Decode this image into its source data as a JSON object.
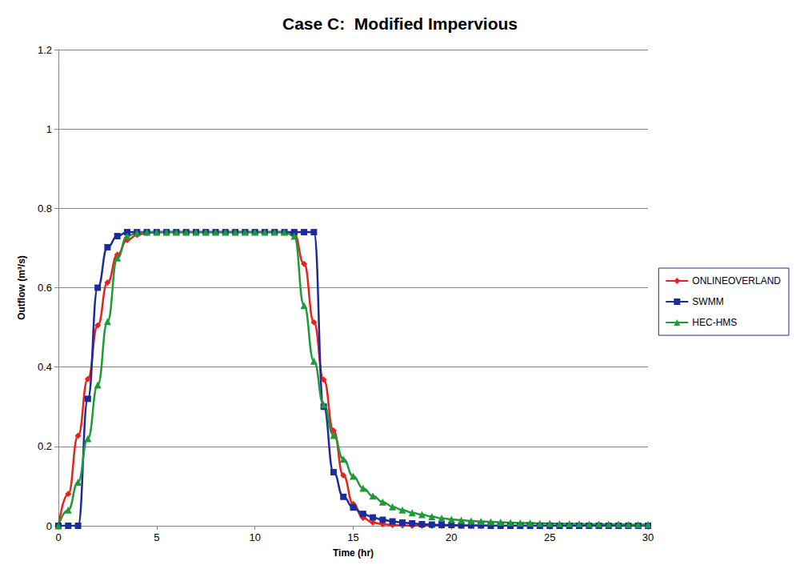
{
  "chart_data": {
    "type": "line",
    "title": "Case C:  Modified Impervious",
    "x_label": "Time (hr)",
    "y_label": "Outflow (m³/s)",
    "x": [
      0,
      0.5,
      1,
      1.5,
      2,
      2.5,
      3,
      3.5,
      4,
      4.5,
      5,
      5.5,
      6,
      6.5,
      7,
      7.5,
      8,
      8.5,
      9,
      9.5,
      10,
      10.5,
      11,
      11.5,
      12,
      12.5,
      13,
      13.5,
      14,
      14.5,
      15,
      15.5,
      16,
      16.5,
      17,
      17.5,
      18,
      18.5,
      19,
      19.5,
      20,
      20.5,
      21,
      21.5,
      22,
      22.5,
      23,
      23.5,
      24,
      24.5,
      25,
      25.5,
      26,
      26.5,
      27,
      27.5,
      28,
      28.5,
      29,
      29.5,
      30
    ],
    "series": [
      {
        "name": "ONLINEOVERLAND",
        "color": "#e8221c",
        "marker": "diamond",
        "values": [
          0,
          0.08,
          0.227,
          0.37,
          0.505,
          0.613,
          0.683,
          0.72,
          0.733,
          0.738,
          0.74,
          0.74,
          0.74,
          0.74,
          0.74,
          0.74,
          0.74,
          0.74,
          0.74,
          0.74,
          0.74,
          0.74,
          0.74,
          0.74,
          0.735,
          0.66,
          0.513,
          0.368,
          0.24,
          0.127,
          0.055,
          0.02,
          0.008,
          0.004,
          0.002,
          0.001,
          0,
          0,
          0,
          0,
          0,
          0,
          0,
          0,
          0,
          0,
          0,
          0,
          0,
          0,
          0,
          0,
          0,
          0,
          0,
          0,
          0,
          0,
          0,
          0,
          0
        ]
      },
      {
        "name": "SWMM",
        "color": "#1c2a9c",
        "marker": "square",
        "values": [
          0,
          0,
          0,
          0.32,
          0.6,
          0.702,
          0.73,
          0.74,
          0.74,
          0.74,
          0.74,
          0.74,
          0.74,
          0.74,
          0.74,
          0.74,
          0.74,
          0.74,
          0.74,
          0.74,
          0.74,
          0.74,
          0.74,
          0.74,
          0.74,
          0.74,
          0.74,
          0.3,
          0.135,
          0.073,
          0.046,
          0.03,
          0.021,
          0.015,
          0.011,
          0.008,
          0.006,
          0.004,
          0.003,
          0.002,
          0.002,
          0.001,
          0.001,
          0.001,
          0,
          0,
          0,
          0,
          0,
          0,
          0,
          0,
          0,
          0,
          0,
          0,
          0,
          0,
          0,
          0,
          0
        ]
      },
      {
        "name": "HEC-HMS",
        "color": "#1f9a3a",
        "marker": "triangle",
        "values": [
          0,
          0.04,
          0.11,
          0.22,
          0.355,
          0.515,
          0.675,
          0.73,
          0.738,
          0.74,
          0.74,
          0.74,
          0.74,
          0.74,
          0.74,
          0.74,
          0.74,
          0.74,
          0.74,
          0.74,
          0.74,
          0.74,
          0.74,
          0.74,
          0.73,
          0.555,
          0.415,
          0.305,
          0.228,
          0.168,
          0.125,
          0.095,
          0.075,
          0.06,
          0.048,
          0.04,
          0.033,
          0.028,
          0.023,
          0.019,
          0.016,
          0.014,
          0.012,
          0.011,
          0.01,
          0.009,
          0.008,
          0.007,
          0.007,
          0.006,
          0.006,
          0.005,
          0.005,
          0.005,
          0.004,
          0.004,
          0.004,
          0.004,
          0.003,
          0.003,
          0.003
        ]
      }
    ],
    "xlim": [
      0,
      30
    ],
    "xticks": [
      0,
      5,
      10,
      15,
      20,
      25,
      30
    ],
    "ylim": [
      0,
      1.2
    ],
    "yticks": [
      0,
      0.2,
      0.4,
      0.6,
      0.8,
      1,
      1.2
    ],
    "grid": true,
    "legend": "right"
  }
}
